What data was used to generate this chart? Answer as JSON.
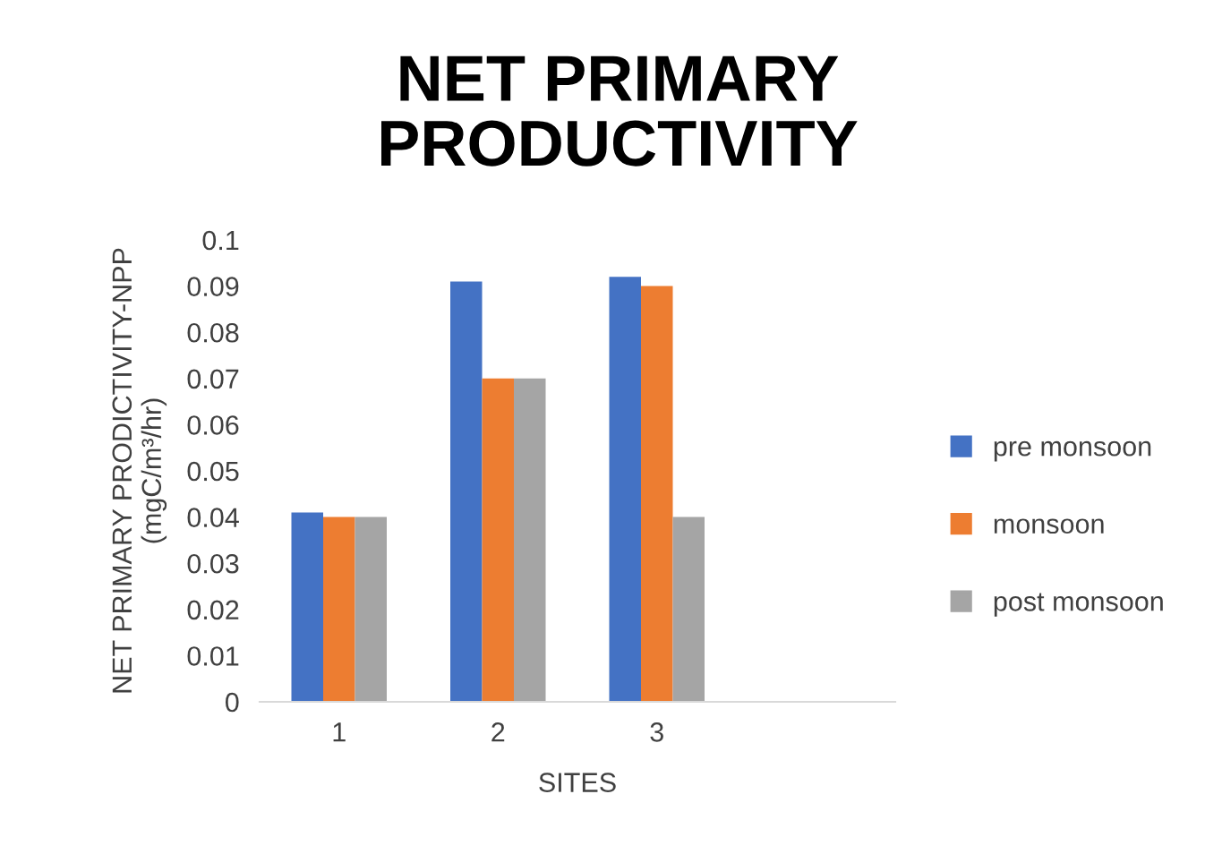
{
  "chart_data": {
    "type": "bar",
    "title": "NET PRIMARY\nPRODUCTIVITY",
    "xlabel": "SITES",
    "ylabel": "NET PRIMARY PRODICTIVITY-NPP\n(mgC/m³/hr)",
    "categories": [
      "1",
      "2",
      "3",
      null
    ],
    "series": [
      {
        "name": "pre monsoon",
        "color": "#4472c4",
        "values": [
          0.041,
          0.091,
          0.092,
          null
        ]
      },
      {
        "name": "monsoon",
        "color": "#ed7d31",
        "values": [
          0.04,
          0.07,
          0.09,
          null
        ]
      },
      {
        "name": "post monsoon",
        "color": "#a5a5a5",
        "values": [
          0.04,
          0.07,
          0.04,
          null
        ]
      }
    ],
    "ylim": [
      0,
      0.1
    ],
    "yticks": [
      0,
      0.01,
      0.02,
      0.03,
      0.04,
      0.05,
      0.06,
      0.07,
      0.08,
      0.09,
      0.1
    ],
    "grid": false,
    "legend": "right"
  }
}
